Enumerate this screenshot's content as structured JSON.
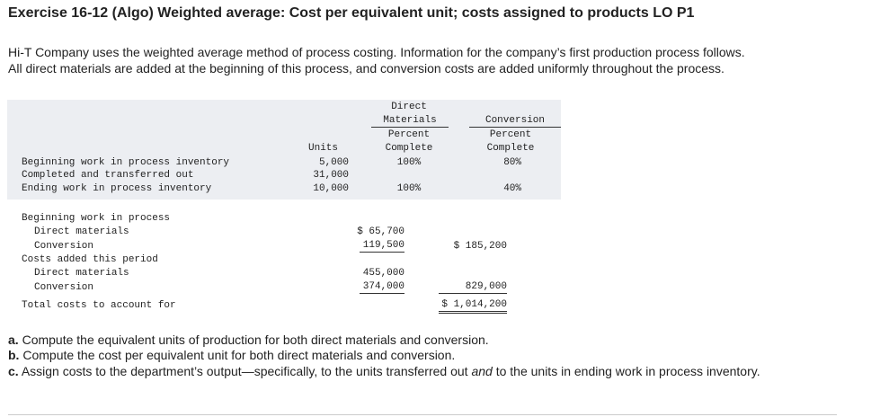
{
  "header": {
    "title": "Exercise 16-12 (Algo) Weighted average: Cost per equivalent unit; costs assigned to products LO P1"
  },
  "intro": [
    "Hi-T Company uses the weighted average method of process costing. Information for the company’s first production process follows.",
    "All direct materials are added at the beginning of this process, and conversion costs are added uniformly throughout the process."
  ],
  "table": {
    "headers": {
      "units": "Units",
      "materials": [
        "Direct",
        "Materials",
        "Percent",
        "Complete"
      ],
      "conversion": [
        "Conversion",
        "Percent",
        "Complete"
      ]
    },
    "rows": [
      {
        "label": "Beginning work in process inventory",
        "units": "5,000",
        "materials": "100%",
        "conversion": "80%"
      },
      {
        "label": "Completed and transferred out",
        "units": "31,000"
      },
      {
        "label": "Ending work in process inventory",
        "units": "10,000",
        "materials": "100%",
        "conversion": "40%"
      }
    ]
  },
  "costs": {
    "beginning": {
      "label": "Beginning work in process",
      "items": [
        {
          "label": "Direct materials",
          "amount": "$ 65,700"
        },
        {
          "label": "Conversion",
          "amount": "119,500"
        }
      ],
      "total": "$ 185,200"
    },
    "added": {
      "label": "Costs added this period",
      "items": [
        {
          "label": "Direct materials",
          "amount": "455,000"
        },
        {
          "label": "Conversion",
          "amount": "374,000"
        }
      ],
      "total": "829,000"
    },
    "total": {
      "label": "Total costs to account for",
      "amount": "$ 1,014,200"
    }
  },
  "questions": [
    {
      "letter": "a.",
      "text": "Compute the equivalent units of production for both direct materials and conversion."
    },
    {
      "letter": "b.",
      "text": "Compute the cost per equivalent unit for both direct materials and conversion."
    },
    {
      "letter": "c.",
      "text_before": "Assign costs to the department’s output—specifically, to the units transferred out ",
      "emphasis": "and",
      "text_after": " to the units in ending work in process inventory."
    }
  ]
}
